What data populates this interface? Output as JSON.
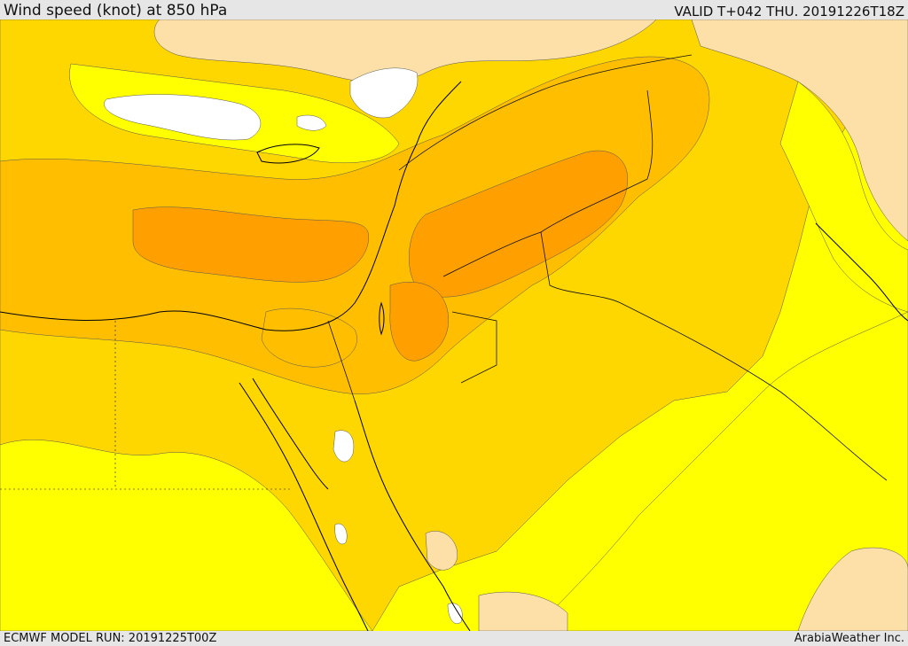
{
  "header": {
    "title": "Wind speed (knot) at 850 hPa",
    "valid": "VALID T+042 THU. 20191226T18Z"
  },
  "footer": {
    "model_run": "ECMWF MODEL RUN: 20191225T00Z",
    "credit": "ArabiaWeather Inc."
  },
  "palette": {
    "calm": "#ffffff",
    "level_1": "#fde0a8",
    "level_2": "#ffff00",
    "level_3": "#ffd700",
    "level_4": "#ffbf00",
    "level_5": "#ff9f00",
    "level_6": "#ff8c00"
  }
}
